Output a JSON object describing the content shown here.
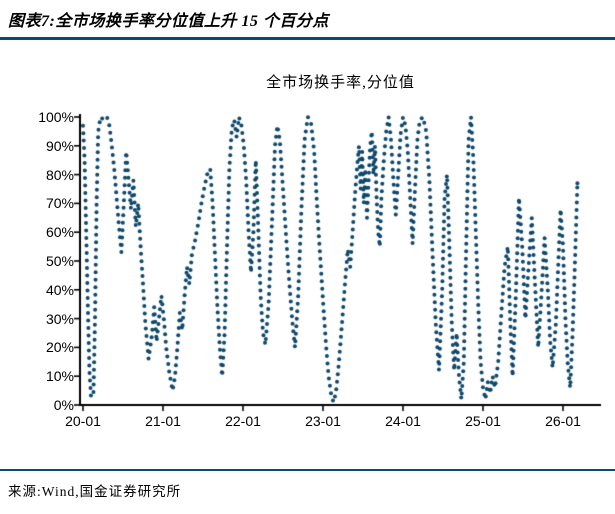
{
  "header": {
    "title": "图表7:全市场换手率分位值上升 15 个百分点"
  },
  "footer": {
    "source": "来源:Wind,国金证券研究所"
  },
  "chart_data": {
    "type": "scatter",
    "subtype": "dotted-line",
    "title": "全市场换手率,分位值",
    "xlabel": "",
    "ylabel": "",
    "legend": "none",
    "grid": "off",
    "ylim": [
      0,
      100
    ],
    "x_range": [
      "2020-01",
      "2026-02"
    ],
    "y_tick_labels": [
      "100%",
      "90%",
      "80%",
      "70%",
      "60%",
      "50%",
      "40%",
      "30%",
      "20%",
      "10%",
      "0%"
    ],
    "x_tick_labels": [
      "20-01",
      "21-01",
      "22-01",
      "23-01",
      "24-01",
      "25-01",
      "26-01"
    ],
    "dot_color": "#10486B",
    "axis_color": "#000000",
    "rule_color": "#0B4A6E",
    "keypoints_unit": {
      "x": "years since 2020-01",
      "y": "percentile %"
    },
    "series": [
      {
        "name": "全市场换手率,分位值",
        "keypoints": [
          [
            0.0,
            97
          ],
          [
            0.02,
            85
          ],
          [
            0.04,
            60
          ],
          [
            0.06,
            35
          ],
          [
            0.08,
            12
          ],
          [
            0.1,
            3
          ],
          [
            0.13,
            3
          ],
          [
            0.15,
            30
          ],
          [
            0.17,
            70
          ],
          [
            0.19,
            95
          ],
          [
            0.22,
            100
          ],
          [
            0.26,
            99
          ],
          [
            0.3,
            100
          ],
          [
            0.33,
            97
          ],
          [
            0.36,
            90
          ],
          [
            0.39,
            82
          ],
          [
            0.42,
            72
          ],
          [
            0.45,
            62
          ],
          [
            0.48,
            53
          ],
          [
            0.51,
            70
          ],
          [
            0.54,
            88
          ],
          [
            0.57,
            78
          ],
          [
            0.6,
            68
          ],
          [
            0.63,
            78
          ],
          [
            0.66,
            62
          ],
          [
            0.69,
            70
          ],
          [
            0.72,
            55
          ],
          [
            0.75,
            42
          ],
          [
            0.78,
            28
          ],
          [
            0.82,
            16
          ],
          [
            0.86,
            24
          ],
          [
            0.89,
            34
          ],
          [
            0.92,
            22
          ],
          [
            0.95,
            30
          ],
          [
            0.98,
            38
          ],
          [
            1.01,
            30
          ],
          [
            1.04,
            20
          ],
          [
            1.08,
            11
          ],
          [
            1.12,
            5
          ],
          [
            1.15,
            10
          ],
          [
            1.18,
            20
          ],
          [
            1.21,
            32
          ],
          [
            1.24,
            26
          ],
          [
            1.27,
            38
          ],
          [
            1.3,
            48
          ],
          [
            1.33,
            42
          ],
          [
            1.36,
            52
          ],
          [
            1.4,
            57
          ],
          [
            1.44,
            63
          ],
          [
            1.48,
            70
          ],
          [
            1.52,
            76
          ],
          [
            1.56,
            81
          ],
          [
            1.59,
            82
          ],
          [
            1.62,
            70
          ],
          [
            1.65,
            52
          ],
          [
            1.68,
            34
          ],
          [
            1.71,
            20
          ],
          [
            1.74,
            10
          ],
          [
            1.77,
            25
          ],
          [
            1.8,
            55
          ],
          [
            1.83,
            82
          ],
          [
            1.86,
            96
          ],
          [
            1.89,
            99
          ],
          [
            1.92,
            93
          ],
          [
            1.95,
            100
          ],
          [
            1.98,
            97
          ],
          [
            2.01,
            90
          ],
          [
            2.04,
            78
          ],
          [
            2.07,
            60
          ],
          [
            2.1,
            46
          ],
          [
            2.13,
            60
          ],
          [
            2.16,
            85
          ],
          [
            2.19,
            62
          ],
          [
            2.22,
            38
          ],
          [
            2.25,
            25
          ],
          [
            2.28,
            21
          ],
          [
            2.32,
            35
          ],
          [
            2.36,
            62
          ],
          [
            2.4,
            90
          ],
          [
            2.43,
            97
          ],
          [
            2.46,
            92
          ],
          [
            2.5,
            75
          ],
          [
            2.54,
            58
          ],
          [
            2.58,
            42
          ],
          [
            2.62,
            28
          ],
          [
            2.65,
            20
          ],
          [
            2.69,
            38
          ],
          [
            2.73,
            68
          ],
          [
            2.77,
            92
          ],
          [
            2.81,
            100
          ],
          [
            2.85,
            98
          ],
          [
            2.89,
            88
          ],
          [
            2.92,
            72
          ],
          [
            2.95,
            58
          ],
          [
            2.98,
            45
          ],
          [
            3.01,
            32
          ],
          [
            3.04,
            20
          ],
          [
            3.07,
            10
          ],
          [
            3.1,
            4
          ],
          [
            3.13,
            1
          ],
          [
            3.16,
            4
          ],
          [
            3.19,
            12
          ],
          [
            3.22,
            22
          ],
          [
            3.25,
            33
          ],
          [
            3.28,
            44
          ],
          [
            3.31,
            54
          ],
          [
            3.34,
            48
          ],
          [
            3.37,
            60
          ],
          [
            3.4,
            73
          ],
          [
            3.43,
            84
          ],
          [
            3.45,
            90
          ],
          [
            3.47,
            75
          ],
          [
            3.49,
            88
          ],
          [
            3.51,
            70
          ],
          [
            3.53,
            82
          ],
          [
            3.55,
            65
          ],
          [
            3.57,
            78
          ],
          [
            3.59,
            90
          ],
          [
            3.61,
            95
          ],
          [
            3.63,
            80
          ],
          [
            3.65,
            90
          ],
          [
            3.67,
            72
          ],
          [
            3.69,
            60
          ],
          [
            3.71,
            55
          ],
          [
            3.73,
            72
          ],
          [
            3.76,
            85
          ],
          [
            3.79,
            95
          ],
          [
            3.82,
            100
          ],
          [
            3.85,
            92
          ],
          [
            3.88,
            78
          ],
          [
            3.91,
            66
          ],
          [
            3.94,
            80
          ],
          [
            3.97,
            94
          ],
          [
            4.0,
            100
          ],
          [
            4.03,
            97
          ],
          [
            4.06,
            88
          ],
          [
            4.09,
            72
          ],
          [
            4.12,
            56
          ],
          [
            4.15,
            75
          ],
          [
            4.18,
            92
          ],
          [
            4.21,
            99
          ],
          [
            4.25,
            100
          ],
          [
            4.29,
            95
          ],
          [
            4.33,
            78
          ],
          [
            4.37,
            52
          ],
          [
            4.41,
            28
          ],
          [
            4.45,
            12
          ],
          [
            4.49,
            40
          ],
          [
            4.52,
            72
          ],
          [
            4.55,
            80
          ],
          [
            4.58,
            55
          ],
          [
            4.61,
            28
          ],
          [
            4.64,
            12
          ],
          [
            4.67,
            25
          ],
          [
            4.7,
            10
          ],
          [
            4.73,
            2
          ],
          [
            4.76,
            15
          ],
          [
            4.79,
            55
          ],
          [
            4.82,
            92
          ],
          [
            4.85,
            100
          ],
          [
            4.88,
            85
          ],
          [
            4.91,
            60
          ],
          [
            4.94,
            35
          ],
          [
            4.97,
            15
          ],
          [
            5.0,
            6
          ],
          [
            5.03,
            2
          ],
          [
            5.06,
            8
          ],
          [
            5.09,
            4
          ],
          [
            5.12,
            10
          ],
          [
            5.15,
            6
          ],
          [
            5.19,
            15
          ],
          [
            5.23,
            32
          ],
          [
            5.27,
            48
          ],
          [
            5.31,
            55
          ],
          [
            5.34,
            30
          ],
          [
            5.37,
            10
          ],
          [
            5.41,
            38
          ],
          [
            5.45,
            72
          ],
          [
            5.49,
            55
          ],
          [
            5.53,
            30
          ],
          [
            5.57,
            48
          ],
          [
            5.61,
            65
          ],
          [
            5.65,
            42
          ],
          [
            5.69,
            20
          ],
          [
            5.73,
            38
          ],
          [
            5.77,
            58
          ],
          [
            5.81,
            40
          ],
          [
            5.84,
            22
          ],
          [
            5.87,
            13
          ],
          [
            5.91,
            28
          ],
          [
            5.94,
            48
          ],
          [
            5.97,
            68
          ],
          [
            6.0,
            55
          ],
          [
            6.03,
            30
          ],
          [
            6.06,
            14
          ],
          [
            6.09,
            6
          ],
          [
            6.12,
            25
          ],
          [
            6.15,
            50
          ],
          [
            6.18,
            77
          ]
        ]
      }
    ]
  }
}
